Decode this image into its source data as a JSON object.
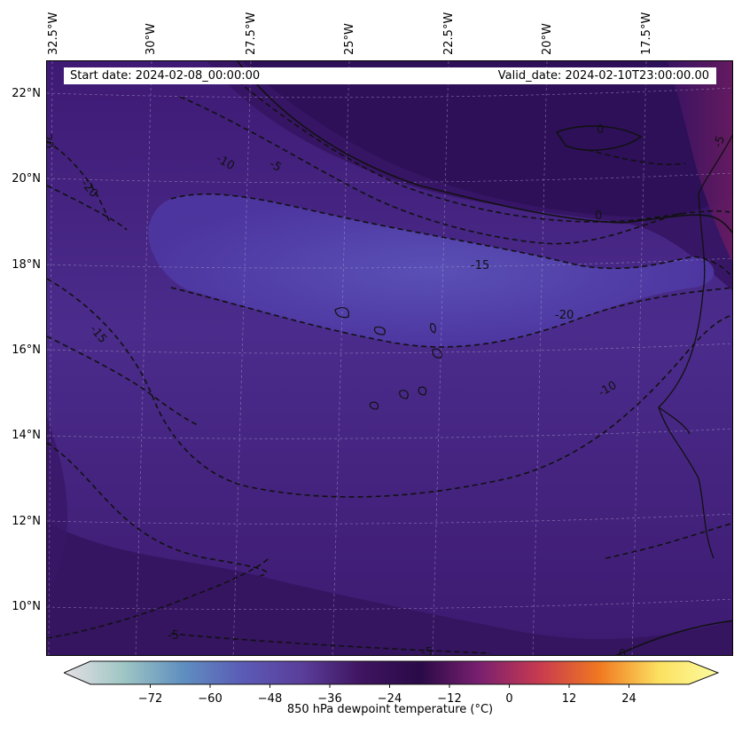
{
  "header": {
    "start_date": "Start date: 2024-02-08_00:00:00",
    "valid_date": "Valid_date: 2024-02-10T23:00:00.00"
  },
  "axes": {
    "lon_labels": [
      "32.5°W",
      "30°W",
      "27.5°W",
      "25°W",
      "22.5°W",
      "20°W",
      "17.5°W"
    ],
    "lat_labels": [
      "22°N",
      "20°N",
      "18°N",
      "16°N",
      "14°N",
      "12°N",
      "10°N"
    ]
  },
  "map": {
    "field": "850 hPa dewpoint temperature",
    "contour_labels": [
      "-20",
      "-10",
      "-5",
      "0",
      "0",
      "-5",
      "-15",
      "-20",
      "-15",
      "-10",
      "-5",
      "-5",
      "0",
      "-20"
    ]
  },
  "colorbar": {
    "label": "850 hPa dewpoint temperature ($^\\circ$C)",
    "label_display": "850 hPa dewpoint temperature (°C)",
    "ticks": [
      "−72",
      "−60",
      "−48",
      "−36",
      "−24",
      "−12",
      "0",
      "12",
      "24"
    ],
    "vmin": -84,
    "vmax": 36,
    "colormap": [
      "#e6e0e6",
      "#9fc6c4",
      "#5f8fc0",
      "#5b5bb6",
      "#5a3e9a",
      "#3f1460",
      "#2a0a48",
      "#7a2070",
      "#c83a50",
      "#f07820",
      "#fce060",
      "#fcfca0"
    ]
  },
  "colors": {
    "background_base": "#4a2a86",
    "dry_band": "#5a4ab0",
    "moist_band": "#3a1668",
    "warm_coast": "#6a1c64"
  }
}
